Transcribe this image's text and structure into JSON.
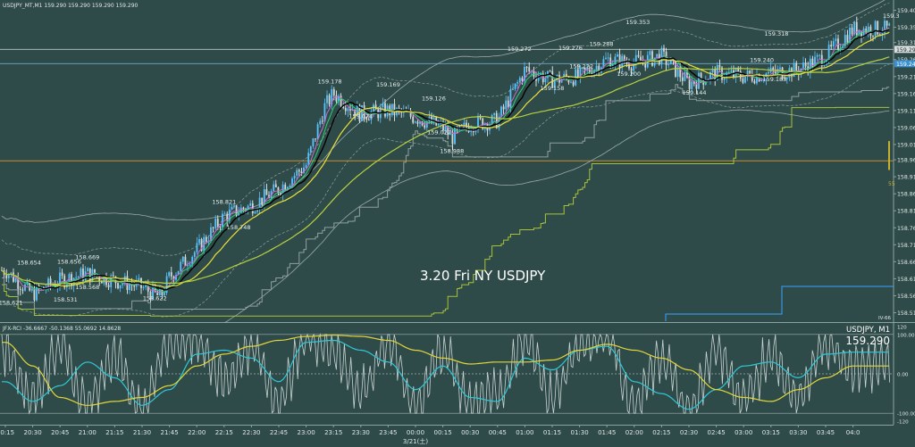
{
  "main": {
    "info": "USDJPY_MT,M1  159.290 159.290 159.290 159.290",
    "caption": "3.20 Fri NY USDJPY",
    "price_ticks": [
      "159.405",
      "159.355",
      "159.310",
      "159.260",
      "159.210",
      "159.160",
      "159.110",
      "159.060",
      "159.010",
      "158.965",
      "158.915",
      "158.865",
      "158.815",
      "158.765",
      "158.715",
      "158.665",
      "158.615",
      "158.565",
      "158.515"
    ],
    "price_range": [
      158.49,
      159.43
    ],
    "current_price_label": "159.290",
    "mid_price_label": "159.248",
    "right_edge_value": "55",
    "bottom_right_tag": "IV-66",
    "top_right_label": "159.3",
    "price_annotations": [
      {
        "text": "158.654",
        "t": "20:28",
        "p": 158.657
      },
      {
        "text": "158.656",
        "t": "20:50",
        "p": 158.659
      },
      {
        "text": "158.669",
        "t": "21:00",
        "p": 158.672
      },
      {
        "text": "158.621",
        "t": "20:18",
        "p": 158.538
      },
      {
        "text": "158.531",
        "t": "20:48",
        "p": 158.548
      },
      {
        "text": "158.568",
        "t": "21:00",
        "p": 158.585
      },
      {
        "text": "158.622",
        "t": "21:37",
        "p": 158.552
      },
      {
        "text": "158.821",
        "t": "22:15",
        "p": 158.835
      },
      {
        "text": "158.748",
        "t": "22:23",
        "p": 158.76
      },
      {
        "text": "159.178",
        "t": "23:13",
        "p": 159.19
      },
      {
        "text": "159.074",
        "t": "23:30",
        "p": 159.088
      },
      {
        "text": "159.169",
        "t": "23:45",
        "p": 159.18
      },
      {
        "text": "159.126",
        "t": "00:10",
        "p": 159.14
      },
      {
        "text": "159.027",
        "t": "00:13",
        "p": 159.04
      },
      {
        "text": "158.988",
        "t": "00:20",
        "p": 158.985
      },
      {
        "text": "159.272",
        "t": "00:57",
        "p": 159.285
      },
      {
        "text": "159.276",
        "t": "01:25",
        "p": 159.288
      },
      {
        "text": "159.288",
        "t": "01:42",
        "p": 159.3
      },
      {
        "text": "159.222",
        "t": "01:31",
        "p": 159.235
      },
      {
        "text": "159.200",
        "t": "01:57",
        "p": 159.212
      },
      {
        "text": "159.158",
        "t": "01:15",
        "p": 159.17
      },
      {
        "text": "159.353",
        "t": "02:02",
        "p": 159.365
      },
      {
        "text": "159.144",
        "t": "02:33",
        "p": 159.157
      },
      {
        "text": "159.240",
        "t": "03:10",
        "p": 159.253
      },
      {
        "text": "159.183",
        "t": "03:17",
        "p": 159.196
      },
      {
        "text": "159.318",
        "t": "03:18",
        "p": 159.33
      }
    ]
  },
  "indicator": {
    "info": "JFX-RCI -36.6667 -50.1368 55.0692 14.8628",
    "symbol_label": "USDJPY, M1",
    "bid_price": "159.290",
    "ticks": [
      "120",
      "100.0000",
      "0.00",
      "-100.0000",
      "-120"
    ],
    "range": [
      -120,
      120
    ]
  },
  "time_axis": {
    "labels": [
      "20:15",
      "20:30",
      "20:45",
      "21:00",
      "21:15",
      "21:30",
      "21:45",
      "22:00",
      "22:15",
      "22:30",
      "22:45",
      "23:00",
      "23:15",
      "23:30",
      "23:45",
      "00:00",
      "00:15",
      "00:30",
      "00:45",
      "01:00",
      "01:15",
      "01:30",
      "01:45",
      "02:00",
      "02:15",
      "02:30",
      "02:45",
      "03:00",
      "03:15",
      "03:30",
      "03:45",
      "04:0"
    ],
    "date_label": "3/21(土)"
  },
  "chart_data": [
    {
      "type": "candlestick",
      "title": "USDJPY_MT,M1",
      "x_unit": "time (M1, server time)",
      "x": [
        "20:15",
        "20:30",
        "20:45",
        "21:00",
        "21:15",
        "21:30",
        "21:40",
        "21:45",
        "22:00",
        "22:15",
        "22:30",
        "22:45",
        "23:00",
        "23:10",
        "23:15",
        "23:30",
        "23:45",
        "00:00",
        "00:15",
        "00:20",
        "00:30",
        "00:45",
        "01:00",
        "01:15",
        "01:30",
        "01:45",
        "02:00",
        "02:15",
        "02:30",
        "02:45",
        "03:00",
        "03:15",
        "03:30",
        "03:45",
        "04:00"
      ],
      "series": [
        {
          "name": "price",
          "values": [
            158.64,
            158.57,
            158.61,
            158.63,
            158.61,
            158.59,
            158.56,
            158.62,
            158.7,
            158.8,
            158.83,
            158.88,
            158.95,
            159.12,
            159.16,
            159.1,
            159.11,
            159.09,
            159.06,
            159.03,
            159.07,
            159.08,
            159.23,
            159.2,
            159.21,
            159.26,
            159.25,
            159.27,
            159.19,
            159.22,
            159.21,
            159.22,
            159.23,
            159.27,
            159.35
          ]
        }
      ],
      "ylim": [
        158.49,
        159.43
      ],
      "annotations_high_low": [
        "158.654",
        "158.656",
        "158.669",
        "158.621",
        "158.531",
        "158.568",
        "158.622",
        "158.821",
        "158.748",
        "159.178",
        "159.074",
        "159.169",
        "159.126",
        "159.027",
        "158.988",
        "159.272",
        "159.276",
        "159.288",
        "159.222",
        "159.200",
        "159.158",
        "159.353",
        "159.144",
        "159.240",
        "159.183",
        "159.318"
      ]
    },
    {
      "type": "line",
      "title": "JFX-RCI",
      "ylim": [
        -120,
        120
      ],
      "levels": [
        100,
        0,
        -100
      ],
      "x": [
        "20:15",
        "20:30",
        "20:45",
        "21:00",
        "21:15",
        "21:30",
        "21:45",
        "22:00",
        "22:15",
        "22:30",
        "22:45",
        "23:00",
        "23:15",
        "23:30",
        "23:45",
        "00:00",
        "00:15",
        "00:30",
        "00:45",
        "01:00",
        "01:15",
        "01:30",
        "01:45",
        "02:00",
        "02:15",
        "02:30",
        "02:45",
        "03:00",
        "03:15",
        "03:30",
        "03:45",
        "04:00"
      ],
      "series": [
        {
          "name": "-36.6667",
          "values": [
            60,
            -60,
            70,
            -80,
            50,
            -90,
            80,
            90,
            -20,
            70,
            -70,
            95,
            60,
            -40,
            80,
            -90,
            60,
            -80,
            -50,
            90,
            -60,
            70,
            95,
            -80,
            40,
            -90,
            60,
            -70,
            50,
            -60,
            80,
            20
          ]
        },
        {
          "name": "-50.1368",
          "values": [
            -20,
            -70,
            -30,
            30,
            -10,
            -80,
            -40,
            50,
            60,
            40,
            -20,
            80,
            85,
            60,
            30,
            -40,
            20,
            -60,
            -70,
            40,
            10,
            60,
            70,
            -20,
            -50,
            -90,
            -40,
            20,
            30,
            -10,
            50,
            55
          ]
        },
        {
          "name": "55.0692",
          "values": [
            80,
            20,
            -60,
            -80,
            -70,
            -60,
            -30,
            20,
            50,
            70,
            85,
            95,
            98,
            95,
            85,
            60,
            40,
            25,
            30,
            30,
            35,
            60,
            75,
            60,
            40,
            10,
            -40,
            -60,
            -70,
            -40,
            -10,
            20
          ]
        }
      ]
    }
  ]
}
